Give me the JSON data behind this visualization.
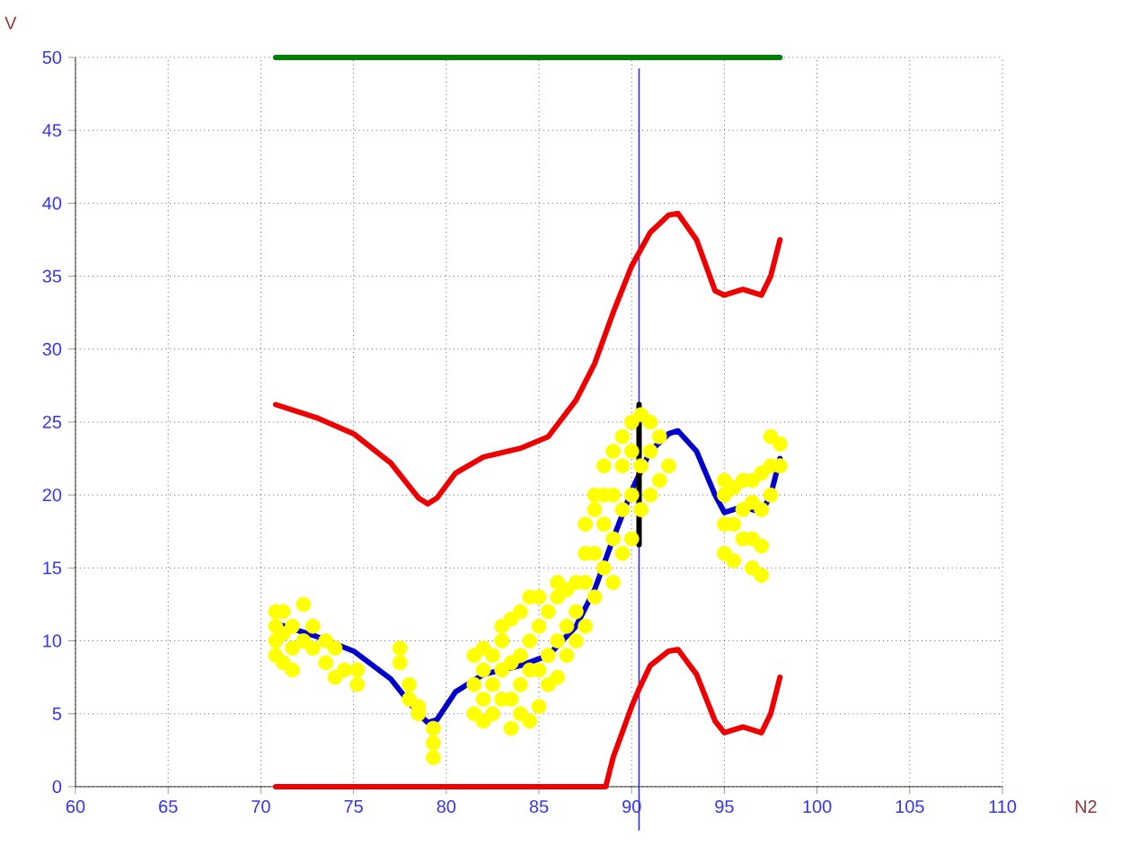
{
  "chart_data": {
    "type": "line",
    "xlabel": "N2",
    "ylabel": "V",
    "xlim": [
      60,
      110
    ],
    "xticks": [
      60,
      65,
      70,
      75,
      80,
      85,
      90,
      95,
      100,
      105,
      110
    ],
    "ylim": [
      0,
      50
    ],
    "yticks": [
      0,
      5,
      10,
      15,
      20,
      25,
      30,
      35,
      40,
      45,
      50
    ],
    "grid": true,
    "line_style": "solid",
    "ref_lines": [
      {
        "axis": "x",
        "value": 90.4,
        "color": "#3333cc"
      }
    ],
    "series": [
      {
        "type": "scatter",
        "marker": "circle",
        "color": "#ffff00",
        "x": [
          70.8,
          70.8,
          70.8,
          70.8,
          71.2,
          71.2,
          71.2,
          71.7,
          71.7,
          71.7,
          72.3,
          72.3,
          72.8,
          72.8,
          73.5,
          73.5,
          74,
          74,
          74.5,
          75.2,
          75.2,
          77.5,
          77.5,
          78,
          78,
          78.5,
          78.5,
          79.3,
          79.3,
          79.3,
          81.5,
          81.5,
          81.5,
          82,
          82,
          82,
          82,
          82.5,
          82.5,
          82.5,
          83,
          83,
          83,
          83,
          83.5,
          83.5,
          83.5,
          83.5,
          84,
          84,
          84,
          84,
          84.5,
          84.5,
          84.5,
          84.5,
          85,
          85,
          85,
          85,
          85.5,
          85.5,
          85.5,
          86,
          86,
          86,
          86,
          86.5,
          86.5,
          86.5,
          87,
          87,
          87,
          87.5,
          87.5,
          87.5,
          87.5,
          88,
          88,
          88,
          88,
          88.5,
          88.5,
          88.5,
          88.5,
          89,
          89,
          89,
          89,
          89.5,
          89.5,
          89.5,
          89.5,
          90,
          90,
          90,
          90,
          90.5,
          90.5,
          90.5,
          91,
          91,
          91,
          91.5,
          91.5,
          92,
          95,
          95,
          95,
          95,
          95.5,
          95.5,
          95.5,
          96,
          96,
          96,
          96.5,
          96.5,
          96.5,
          96.5,
          97,
          97,
          97,
          97,
          97.5,
          97.5,
          97.5,
          98,
          98
        ],
        "values": [
          9,
          10,
          11,
          12,
          8.5,
          10.5,
          12,
          8,
          9.5,
          11,
          10,
          12.5,
          9.5,
          11,
          8.5,
          10,
          7.5,
          9.5,
          8,
          7,
          8,
          8.5,
          9.5,
          6,
          7,
          5,
          5.5,
          2,
          3,
          4,
          5,
          7,
          9,
          4.5,
          6,
          8,
          9.5,
          5,
          7,
          9,
          6,
          8,
          10,
          11,
          4,
          6,
          8.5,
          11.5,
          5,
          7,
          9,
          12,
          4.5,
          8,
          10,
          13,
          5.5,
          8,
          11,
          13,
          7,
          9,
          12,
          7.5,
          10,
          13,
          14,
          9,
          11,
          13.5,
          10,
          12,
          14,
          11,
          14,
          16,
          18,
          13,
          16,
          19,
          20,
          15,
          18,
          20,
          22,
          14,
          17,
          20,
          23,
          16,
          19,
          22,
          24,
          17,
          20,
          23,
          25,
          19,
          22,
          25.5,
          20,
          23,
          25,
          21,
          24,
          22,
          16,
          18,
          20,
          21,
          15.5,
          18,
          20.5,
          17,
          19,
          21,
          15,
          17,
          19.5,
          21,
          14.5,
          16.5,
          19,
          21.5,
          20,
          22,
          24,
          22,
          23.5
        ]
      },
      {
        "color": "#ee0000",
        "x": [
          70.8,
          73,
          75,
          77,
          78.5,
          79,
          79.5,
          80.5,
          82,
          84,
          85.5,
          87,
          88,
          89,
          90,
          91,
          92,
          92.5,
          93.5,
          94.5,
          95,
          96,
          97,
          97.5,
          98
        ],
        "values": [
          26.2,
          25.3,
          24.2,
          22.2,
          19.8,
          19.4,
          19.8,
          21.5,
          22.6,
          23.2,
          24,
          26.5,
          29,
          32.5,
          35.7,
          38,
          39.2,
          39.3,
          37.5,
          34,
          33.7,
          34.1,
          33.7,
          35,
          37.5
        ]
      },
      {
        "color": "#ee0000",
        "x": [
          70.8,
          88.6,
          89,
          90,
          90.4,
          91,
          92,
          92.5,
          93.5,
          94.5,
          95,
          96,
          97,
          97.5,
          98
        ],
        "values": [
          0,
          0,
          2,
          5.5,
          6.7,
          8.3,
          9.3,
          9.4,
          7.7,
          4.5,
          3.7,
          4.1,
          3.7,
          5,
          7.5
        ]
      },
      {
        "color": "#0000cc",
        "x": [
          70.8,
          73,
          75,
          77,
          78.5,
          79,
          79.5,
          80.5,
          82,
          84,
          85.5,
          87,
          88,
          89,
          90,
          91,
          92,
          92.5,
          93.5,
          94.5,
          95,
          96,
          97,
          97.5,
          98
        ],
        "values": [
          11.2,
          10.3,
          9.3,
          7.4,
          5,
          4.4,
          4.6,
          6.5,
          7.7,
          8.3,
          9,
          11,
          13.5,
          17,
          20.3,
          23,
          24.2,
          24.4,
          23,
          20,
          18.8,
          19.2,
          18.8,
          20,
          22.5
        ]
      },
      {
        "color": "#008000",
        "x": [
          70.8,
          98
        ],
        "values": [
          50,
          50
        ]
      },
      {
        "color": "#000000",
        "x": [
          90.4,
          90.4
        ],
        "values": [
          26.2,
          16.6
        ]
      }
    ]
  }
}
